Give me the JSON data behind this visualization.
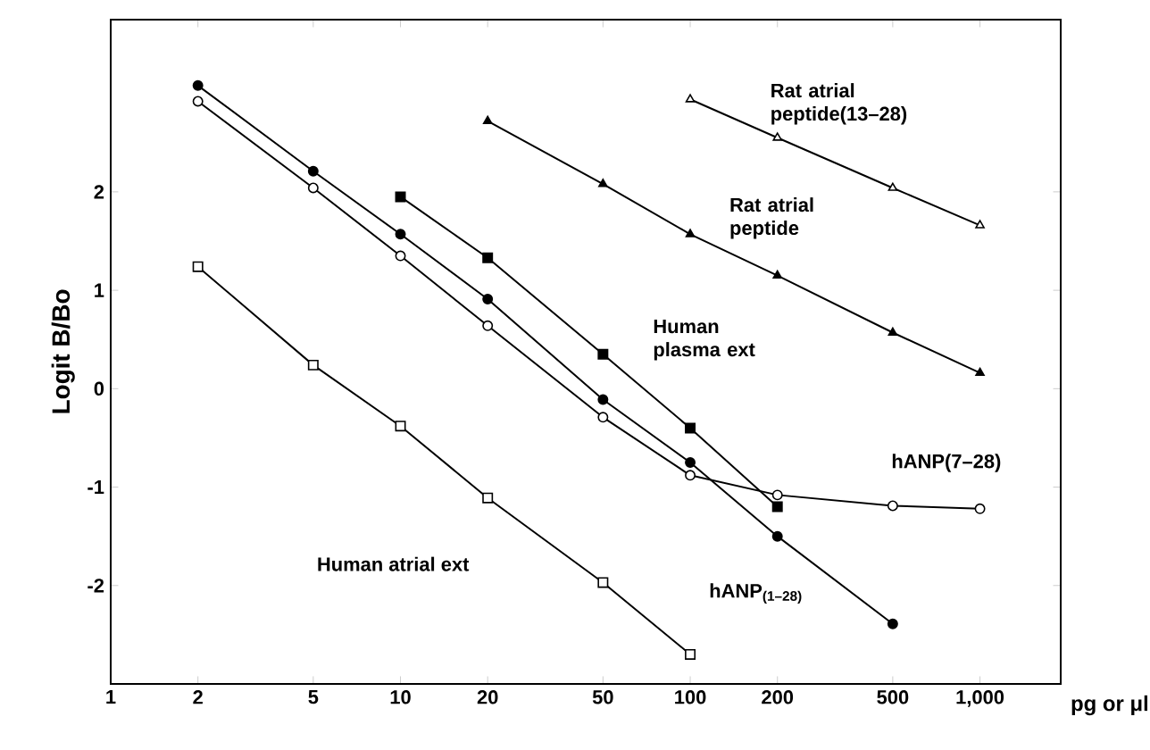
{
  "chart_data": {
    "type": "line",
    "ylabel": "Logit B/Bo",
    "xlabel": "pg or μl",
    "log": "x",
    "grid": false,
    "line_style": "solid",
    "xlim": [
      1,
      1900
    ],
    "ylim": [
      -3,
      3.75
    ],
    "xticks": [
      1,
      2,
      5,
      10,
      20,
      50,
      100,
      200,
      500,
      {
        "value": 1000,
        "label": "1,000"
      }
    ],
    "yticks": [
      -2,
      -1,
      0,
      1,
      2
    ],
    "series": [
      {
        "name": "hANP$_{(1–28)}$",
        "color": "#000000",
        "marker": "circle",
        "x": [
          2,
          5,
          10,
          20,
          50,
          100,
          200,
          500
        ],
        "values": [
          3.08,
          2.21,
          1.57,
          0.91,
          -0.11,
          -0.75,
          -1.5,
          -2.39
        ]
      },
      {
        "name": "hANP(7–28)",
        "color": "#000000",
        "marker": "circle",
        "colors": [
          "#ffffff",
          "#ffffff",
          "#ffffff",
          "#ffffff",
          "#ffffff",
          "#ffffff",
          "#ffffff",
          "#ffffff",
          "#ffffff"
        ],
        "x": [
          2,
          5,
          10,
          20,
          50,
          100,
          200,
          500,
          1000
        ],
        "values": [
          2.92,
          2.04,
          1.35,
          0.64,
          -0.29,
          -0.88,
          -1.08,
          -1.19,
          -1.22
        ]
      },
      {
        "name": "Human\nplasma ext",
        "color": "#000000",
        "marker": "square",
        "x": [
          10,
          20,
          50,
          100,
          200
        ],
        "values": [
          1.95,
          1.33,
          0.35,
          -0.4,
          -1.2
        ]
      },
      {
        "name": "Human atrial ext",
        "color": "#000000",
        "marker": "square",
        "colors": [
          "#ffffff",
          "#ffffff",
          "#ffffff",
          "#ffffff",
          "#ffffff",
          "#ffffff"
        ],
        "x": [
          2,
          5,
          10,
          20,
          50,
          100
        ],
        "values": [
          1.24,
          0.24,
          -0.38,
          -1.11,
          -1.97,
          -2.7
        ]
      },
      {
        "name": "Rat atrial\npeptide",
        "color": "#000000",
        "marker": "triangle",
        "x": [
          20,
          50,
          100,
          200,
          500,
          1000
        ],
        "values": [
          2.72,
          2.08,
          1.57,
          1.15,
          0.57,
          0.16
        ]
      },
      {
        "name": "Rat atrial\npeptide(13–28)",
        "color": "#000000",
        "marker": "triangle",
        "colors": [
          "#ffffff",
          "#ffffff",
          "#ffffff",
          "#ffffff"
        ],
        "x": [
          100,
          200,
          500,
          1000
        ],
        "values": [
          2.94,
          2.55,
          2.04,
          1.66
        ]
      }
    ]
  }
}
